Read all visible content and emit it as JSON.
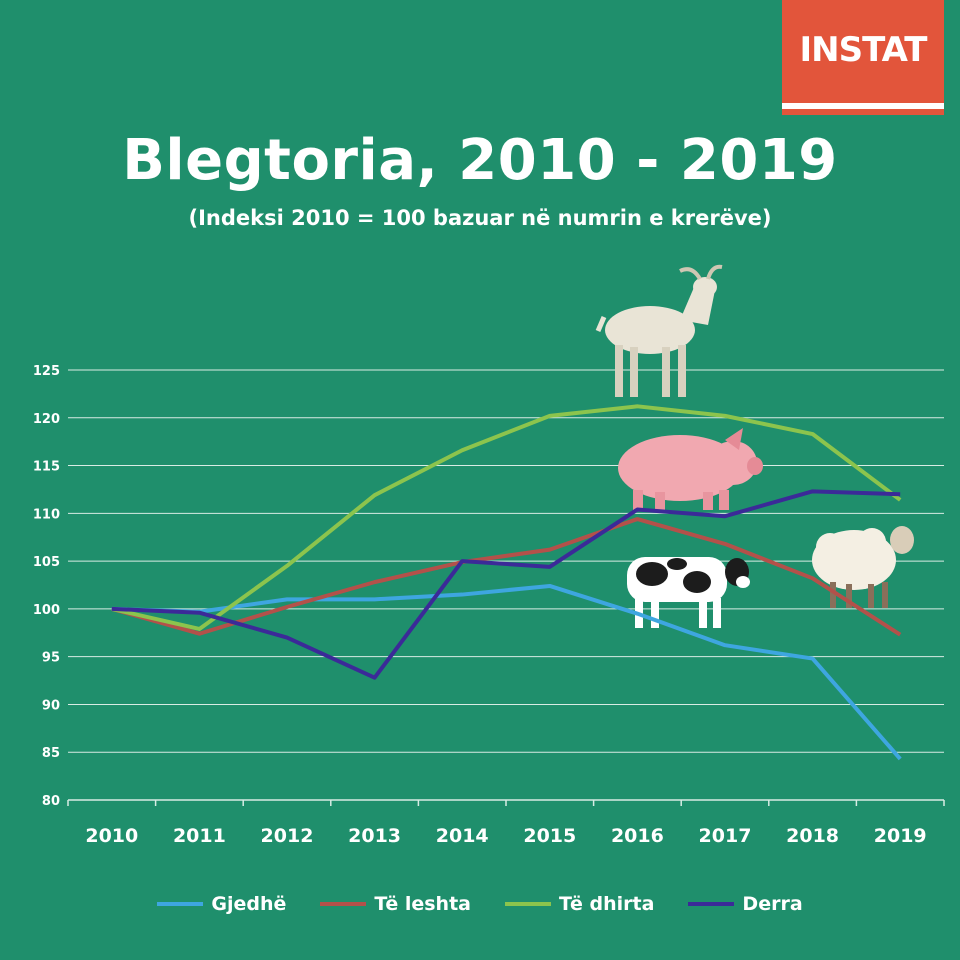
{
  "logo": {
    "text": "INSTAT",
    "color": "#e2553b"
  },
  "header": {
    "title": "Blegtoria, 2010 - 2019",
    "subtitle": "(Indeksi 2010 = 100 bazuar në numrin e krerëve)"
  },
  "chart_data": {
    "type": "line",
    "x": [
      "2010",
      "2011",
      "2012",
      "2013",
      "2014",
      "2015",
      "2016",
      "2017",
      "2018",
      "2019"
    ],
    "ylim": [
      80,
      125
    ],
    "yticks": [
      80,
      85,
      90,
      95,
      100,
      105,
      110,
      115,
      120,
      125
    ],
    "grid": true,
    "legend_position": "bottom",
    "series": [
      {
        "name": "Gjedhë",
        "color": "#3ea6e0",
        "values": [
          100,
          99.7,
          101.0,
          101.0,
          101.5,
          102.4,
          99.5,
          96.2,
          94.8,
          84.3
        ]
      },
      {
        "name": "Të leshta",
        "color": "#b3514a",
        "values": [
          100,
          97.4,
          100.2,
          102.8,
          104.9,
          106.2,
          109.4,
          106.8,
          103.2,
          97.3
        ]
      },
      {
        "name": "Të dhirta",
        "color": "#8cc44d",
        "values": [
          100,
          97.9,
          104.5,
          111.9,
          116.6,
          120.2,
          121.2,
          120.2,
          118.3,
          111.4
        ]
      },
      {
        "name": "Derra",
        "color": "#3b2a98",
        "values": [
          100,
          99.6,
          97.0,
          92.8,
          105.0,
          104.4,
          110.4,
          109.7,
          112.3,
          112.0
        ]
      }
    ]
  }
}
